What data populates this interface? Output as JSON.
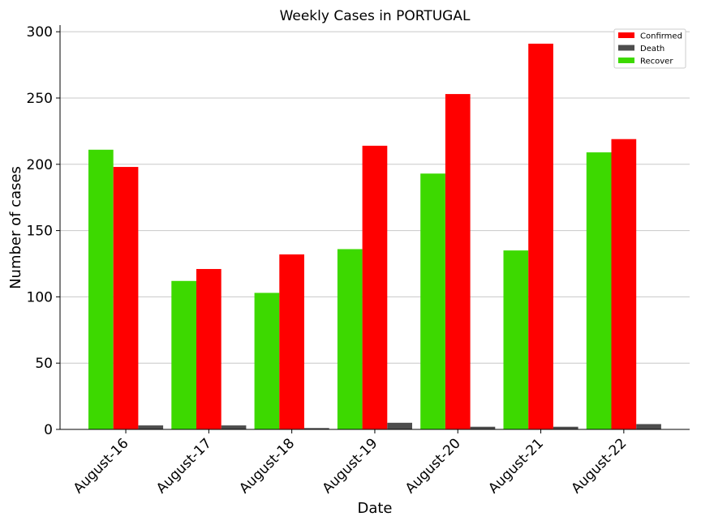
{
  "chart_data": {
    "type": "bar",
    "title": "Weekly Cases in PORTUGAL",
    "xlabel": "Date",
    "ylabel": "Number of cases",
    "categories": [
      "August-16",
      "August-17",
      "August-18",
      "August-19",
      "August-20",
      "August-21",
      "August-22"
    ],
    "series": [
      {
        "name": "Recover",
        "color": "#3dd900",
        "values": [
          211,
          112,
          103,
          136,
          193,
          135,
          209
        ]
      },
      {
        "name": "Confirmed",
        "color": "#ff0000",
        "values": [
          198,
          121,
          132,
          214,
          253,
          291,
          219
        ]
      },
      {
        "name": "Death",
        "color": "#4d4d4d",
        "values": [
          3,
          3,
          1,
          5,
          2,
          2,
          4
        ]
      }
    ],
    "legend_order": [
      "Confirmed",
      "Death",
      "Recover"
    ],
    "ylim": [
      0,
      305
    ],
    "yticks": [
      0,
      50,
      100,
      150,
      200,
      250,
      300
    ],
    "grid": "horizontal",
    "legend_position": "top-right"
  }
}
